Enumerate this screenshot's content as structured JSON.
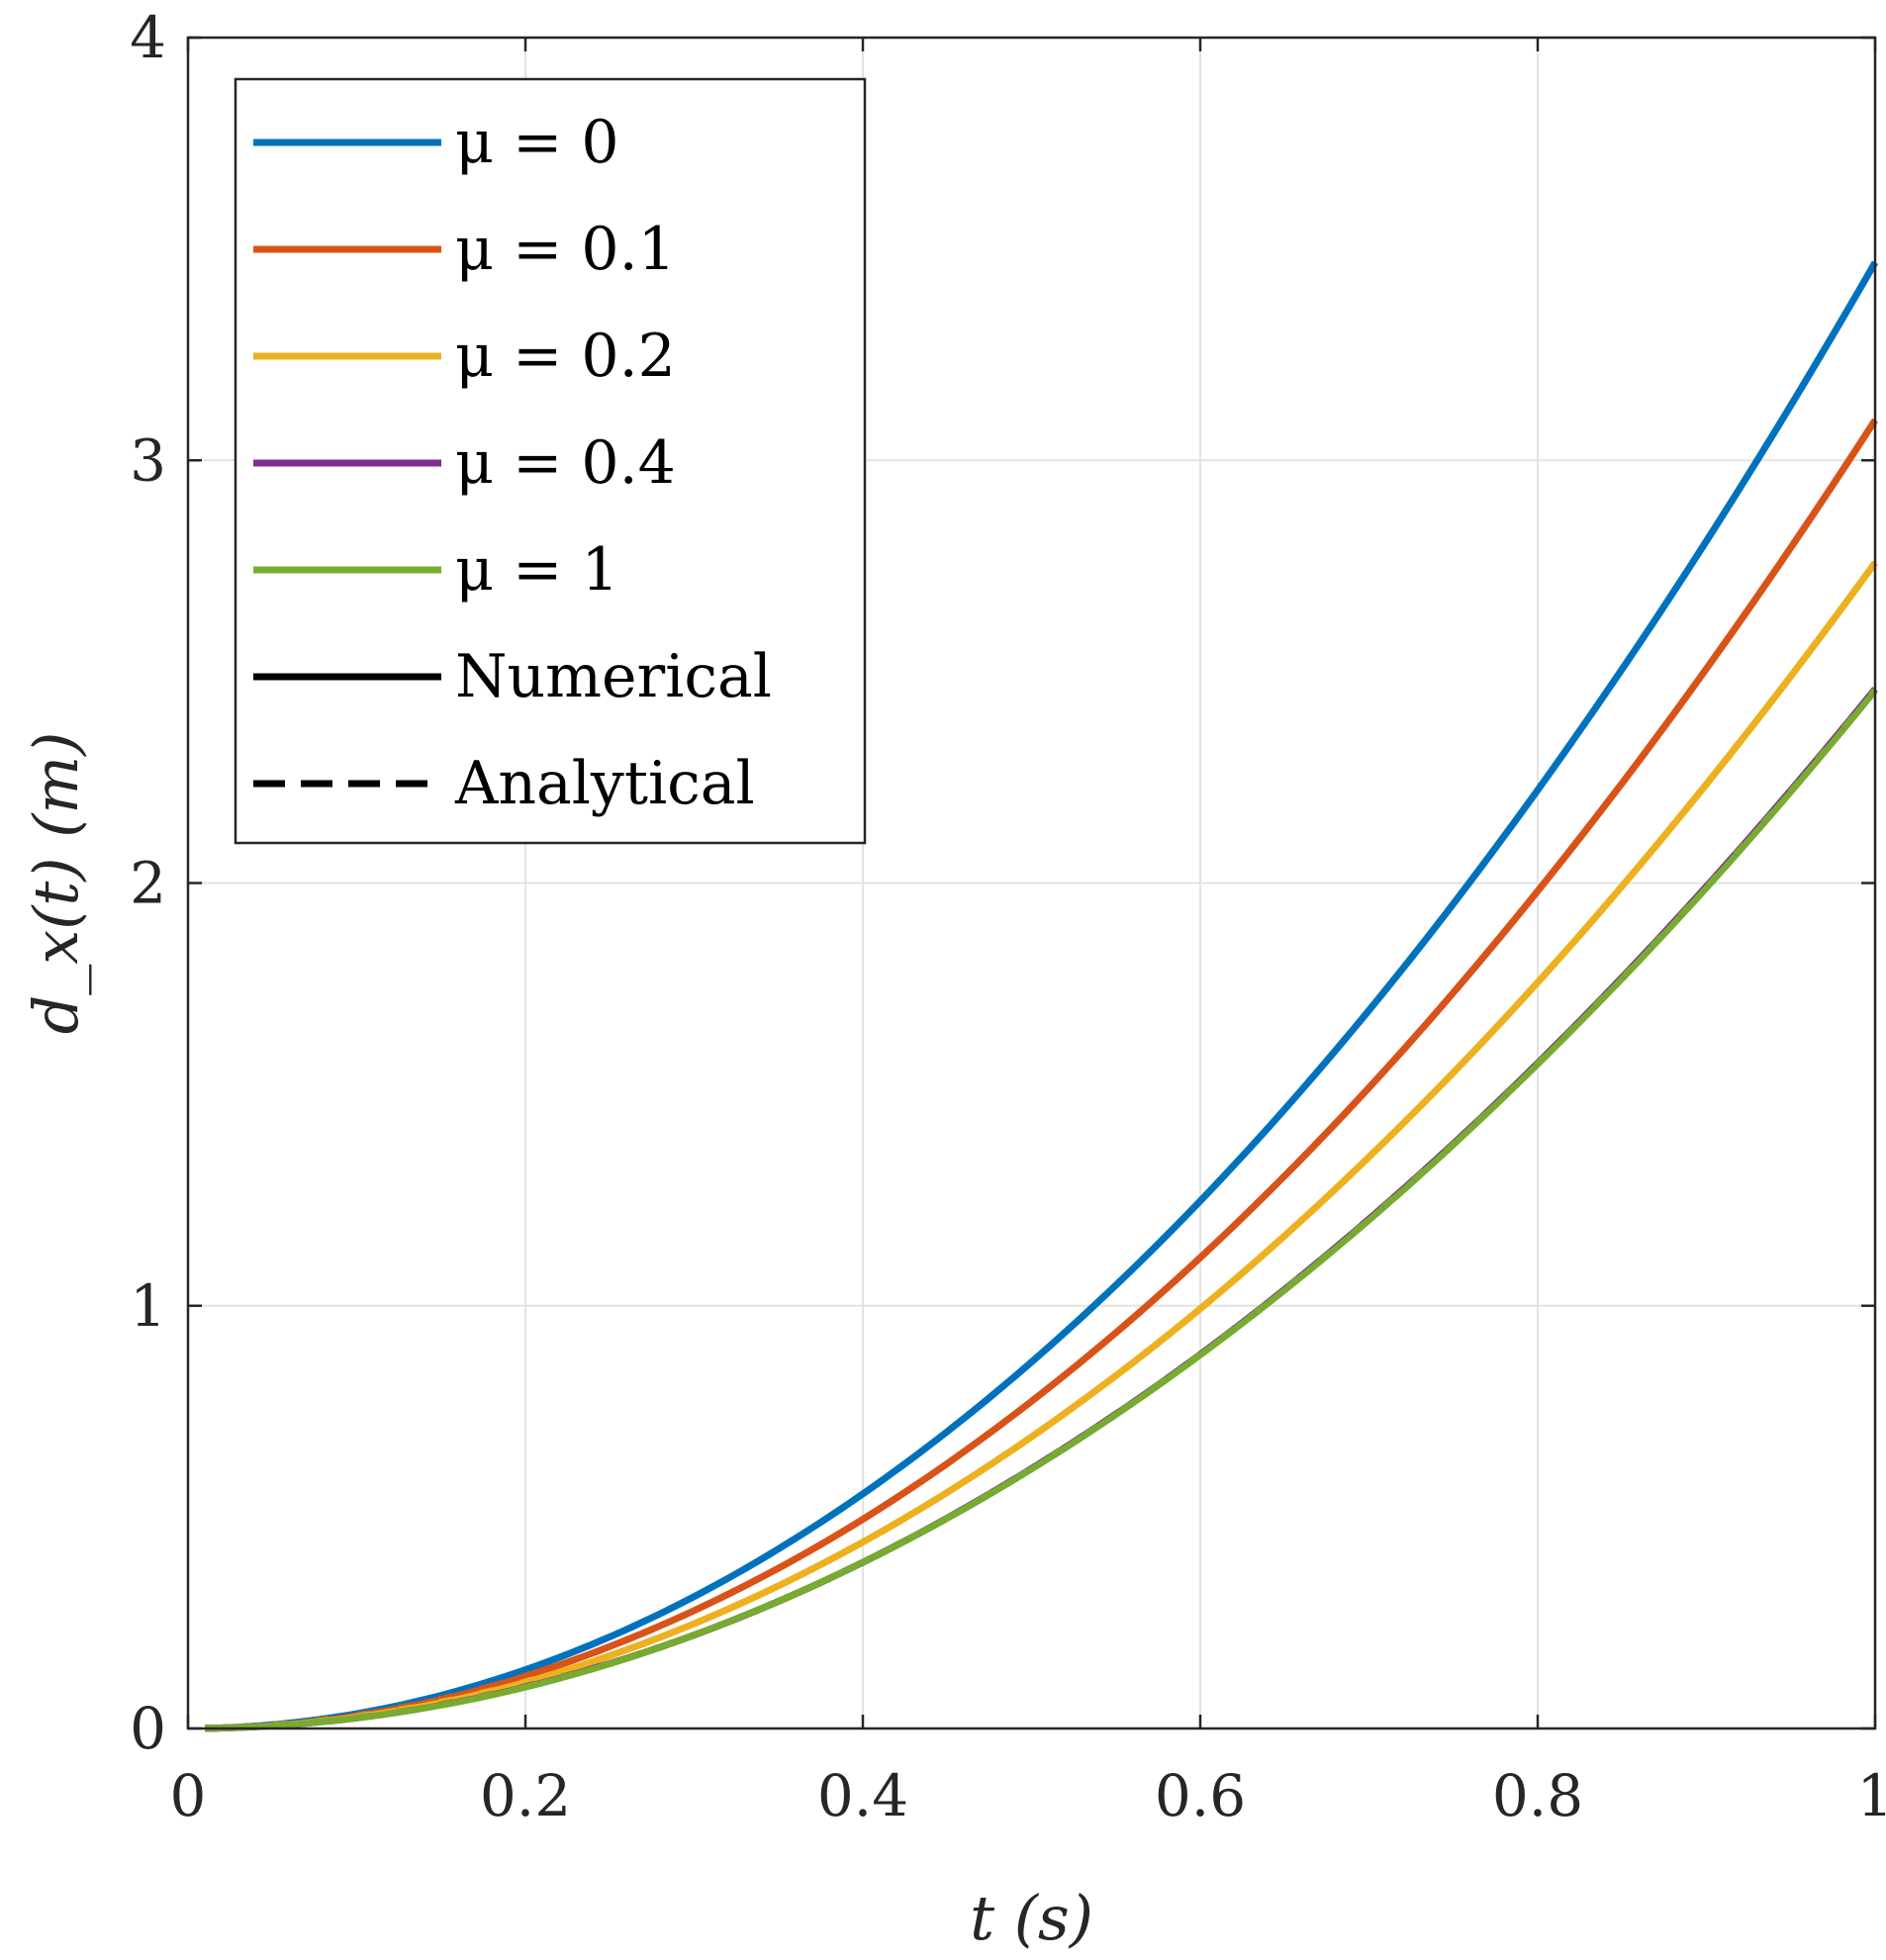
{
  "chart_data": {
    "type": "line",
    "xlabel": "t (s)",
    "ylabel": "d_x(t) (m)",
    "xlim": [
      0,
      1
    ],
    "ylim": [
      0,
      4
    ],
    "xticks": [
      0,
      0.2,
      0.4,
      0.6,
      0.8,
      1
    ],
    "xtick_labels": [
      "0",
      "0.2",
      "0.4",
      "0.6",
      "0.8",
      "1"
    ],
    "yticks": [
      0,
      1,
      2,
      3,
      4
    ],
    "ytick_labels": [
      "0",
      "1",
      "2",
      "3",
      "4"
    ],
    "grid": true,
    "legend_position": "top-left",
    "x": [
      0,
      0.1,
      0.2,
      0.3,
      0.4,
      0.5,
      0.6,
      0.7,
      0.8,
      0.9,
      1.0
    ],
    "series": [
      {
        "name": "μ = 0",
        "color": "#0072BD",
        "values": [
          0,
          0.035,
          0.139,
          0.312,
          0.555,
          0.867,
          1.248,
          1.699,
          2.22,
          2.809,
          3.468
        ]
      },
      {
        "name": "μ = 0.1",
        "color": "#D95319",
        "values": [
          0,
          0.031,
          0.124,
          0.279,
          0.495,
          0.774,
          1.114,
          1.516,
          1.981,
          2.507,
          3.095
        ]
      },
      {
        "name": "μ = 0.2",
        "color": "#EDB120",
        "values": [
          0,
          0.028,
          0.11,
          0.248,
          0.441,
          0.69,
          0.993,
          1.352,
          1.765,
          2.234,
          2.758
        ]
      },
      {
        "name": "μ = 0.4",
        "color": "#7E2F8E",
        "values": [
          0,
          0.025,
          0.099,
          0.221,
          0.393,
          0.615,
          0.885,
          1.205,
          1.574,
          1.992,
          2.459
        ]
      },
      {
        "name": "μ = 1",
        "color": "#77AC30",
        "values": [
          0,
          0.025,
          0.098,
          0.221,
          0.393,
          0.614,
          0.884,
          1.203,
          1.572,
          1.989,
          2.456
        ]
      }
    ],
    "legend_style_entries": [
      {
        "name": "Numerical",
        "color": "#000000",
        "dash": "solid"
      },
      {
        "name": "Analytical",
        "color": "#000000",
        "dash": "dashed"
      }
    ]
  }
}
